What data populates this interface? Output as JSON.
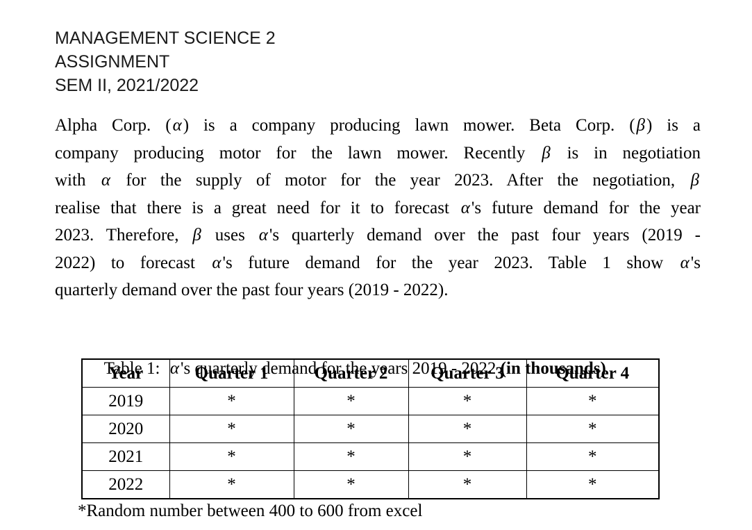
{
  "colors": {
    "background": "#ffffff",
    "body_text": "#000000",
    "heading_text": "#1a1a1a",
    "table_border": "#000000"
  },
  "header": {
    "lines": [
      "MANAGEMENT SCIENCE 2",
      "ASSIGNMENT",
      "SEM II, 2021/2022"
    ]
  },
  "paragraph": {
    "lines": [
      "Alpha Corp. (α) is a company producing lawn mower. Beta Corp. (β) is a",
      "company producing motor for the lawn mower. Recently β is in negotiation",
      "with α for the supply of motor for the year 2023. After the negotiation, β",
      "realise that there is a great need for it to forecast α's future demand for the year",
      "2023. Therefore, β uses α's quarterly demand over the past four years (2019 -",
      "2022) to forecast α's future demand for the year 2023. Table 1 show α's",
      "quarterly demand over the past four years (2019 - 2022)."
    ]
  },
  "caption": {
    "prefix": "Table 1:  α's quarterly demand for the years 2019 - 2022 ",
    "bold": "(in thousands)"
  },
  "table": {
    "columns": [
      "Year",
      "Quarter 1",
      "Quarter 2",
      "Quarter 3",
      "Quarter 4"
    ],
    "rows": [
      [
        "2019",
        "*",
        "*",
        "*",
        "*"
      ],
      [
        "2020",
        "*",
        "*",
        "*",
        "*"
      ],
      [
        "2021",
        "*",
        "*",
        "*",
        "*"
      ],
      [
        "2022",
        "*",
        "*",
        "*",
        "*"
      ]
    ]
  },
  "footnote": "*Random number between 400 to 600 from excel"
}
